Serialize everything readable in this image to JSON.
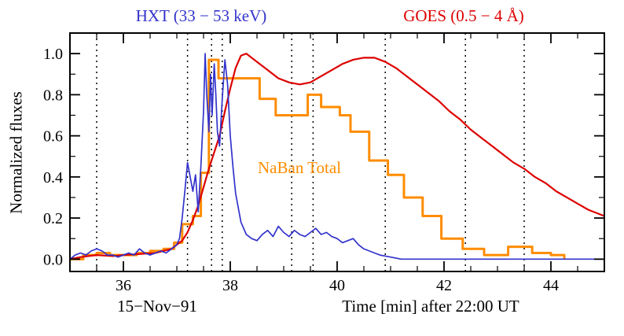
{
  "chart_data": {
    "type": "line",
    "title_left": "HXT (33 − 53 keV)",
    "title_right": "GOES (0.5 − 4 Å)",
    "inline_label": "NaBan Total",
    "xlabel": "Time [min] after 22:00 UT",
    "date_label": "15−Nov−91",
    "ylabel": "Normalized fluxes",
    "xlim": [
      35,
      45
    ],
    "ylim": [
      -0.06,
      1.1
    ],
    "xticks": [
      36,
      38,
      40,
      42,
      44
    ],
    "xtick_labels": [
      "36",
      "38",
      "40",
      "42",
      "44"
    ],
    "yticks": [
      0.0,
      0.2,
      0.4,
      0.6,
      0.8,
      1.0
    ],
    "ytick_labels": [
      "0.0",
      "0.2",
      "0.4",
      "0.6",
      "0.8",
      "1.0"
    ],
    "xminor": 0.5,
    "yminor": 0.1,
    "grid": false,
    "legend_position": "top-inline",
    "frame_color": "#000000",
    "background": "#ffffff",
    "vline_color": "#000000",
    "vlines": [
      35.5,
      37.2,
      37.65,
      37.85,
      39.15,
      39.55,
      40.9,
      42.4,
      43.5
    ],
    "series": [
      {
        "name": "NaBan",
        "color": "#ff8c00",
        "style": "step",
        "width": 3,
        "x": [
          35.0,
          35.25,
          35.5,
          35.75,
          36.0,
          36.25,
          36.5,
          36.75,
          36.95,
          37.1,
          37.3,
          37.45,
          37.6,
          37.78,
          38.55,
          38.85,
          39.45,
          39.7,
          40.05,
          40.25,
          40.6,
          40.95,
          41.25,
          41.6,
          41.95,
          42.35,
          42.75,
          43.2,
          43.65,
          44.0,
          44.25
        ],
        "y": [
          0.0,
          0.02,
          0.03,
          0.02,
          0.02,
          0.03,
          0.04,
          0.05,
          0.08,
          0.17,
          0.21,
          0.42,
          0.97,
          0.88,
          0.78,
          0.7,
          0.8,
          0.74,
          0.7,
          0.62,
          0.48,
          0.41,
          0.3,
          0.21,
          0.1,
          0.05,
          0.02,
          0.06,
          0.03,
          0.02,
          0.0
        ]
      },
      {
        "name": "GOES",
        "color": "#dd0000",
        "style": "line",
        "width": 2.2,
        "x": [
          35.0,
          35.2,
          35.5,
          35.8,
          36.0,
          36.3,
          36.6,
          36.9,
          37.0,
          37.1,
          37.2,
          37.3,
          37.4,
          37.5,
          37.6,
          37.7,
          37.8,
          37.9,
          38.0,
          38.1,
          38.2,
          38.3,
          38.4,
          38.5,
          38.7,
          38.9,
          39.1,
          39.3,
          39.5,
          39.7,
          39.9,
          40.1,
          40.3,
          40.5,
          40.7,
          40.9,
          41.1,
          41.3,
          41.5,
          41.7,
          41.9,
          42.1,
          42.3,
          42.5,
          42.7,
          42.9,
          43.1,
          43.3,
          43.5,
          43.7,
          43.9,
          44.1,
          44.3,
          44.5,
          44.7,
          44.9,
          45.0
        ],
        "y": [
          0.0,
          0.01,
          0.02,
          0.015,
          0.02,
          0.025,
          0.03,
          0.05,
          0.07,
          0.09,
          0.13,
          0.19,
          0.26,
          0.35,
          0.44,
          0.52,
          0.6,
          0.72,
          0.83,
          0.93,
          0.99,
          1.0,
          0.98,
          0.96,
          0.92,
          0.88,
          0.86,
          0.85,
          0.86,
          0.89,
          0.92,
          0.95,
          0.97,
          0.98,
          0.98,
          0.96,
          0.93,
          0.89,
          0.85,
          0.81,
          0.77,
          0.72,
          0.68,
          0.63,
          0.59,
          0.55,
          0.51,
          0.47,
          0.44,
          0.4,
          0.37,
          0.33,
          0.3,
          0.27,
          0.24,
          0.22,
          0.21
        ]
      },
      {
        "name": "HXT",
        "color": "#3333cc",
        "style": "line",
        "width": 1.7,
        "x": [
          35.0,
          35.1,
          35.2,
          35.3,
          35.4,
          35.5,
          35.6,
          35.7,
          35.8,
          35.9,
          36.0,
          36.1,
          36.2,
          36.3,
          36.4,
          36.5,
          36.6,
          36.7,
          36.8,
          36.9,
          37.0,
          37.05,
          37.1,
          37.15,
          37.2,
          37.25,
          37.3,
          37.35,
          37.4,
          37.45,
          37.5,
          37.53,
          37.56,
          37.6,
          37.63,
          37.66,
          37.7,
          37.73,
          37.76,
          37.8,
          37.85,
          37.9,
          37.95,
          38.0,
          38.05,
          38.1,
          38.2,
          38.3,
          38.4,
          38.5,
          38.6,
          38.7,
          38.8,
          38.9,
          39.0,
          39.1,
          39.2,
          39.3,
          39.4,
          39.5,
          39.6,
          39.7,
          39.8,
          39.9,
          40.0,
          40.1,
          40.2,
          40.3,
          40.4,
          40.5,
          40.6,
          40.7,
          40.8,
          41.0,
          41.2,
          41.5,
          42.0,
          43.0,
          44.0,
          45.0
        ],
        "y": [
          0.0,
          0.02,
          0.03,
          0.02,
          0.04,
          0.05,
          0.04,
          0.02,
          0.02,
          0.01,
          0.02,
          0.03,
          0.02,
          0.05,
          0.03,
          0.02,
          0.03,
          0.04,
          0.03,
          0.05,
          0.07,
          0.1,
          0.2,
          0.33,
          0.47,
          0.4,
          0.33,
          0.41,
          0.23,
          0.45,
          0.72,
          1.0,
          0.8,
          0.62,
          0.9,
          0.7,
          0.95,
          0.8,
          0.62,
          0.55,
          0.78,
          0.97,
          0.85,
          0.6,
          0.45,
          0.32,
          0.18,
          0.12,
          0.1,
          0.09,
          0.12,
          0.14,
          0.11,
          0.16,
          0.13,
          0.11,
          0.14,
          0.12,
          0.11,
          0.13,
          0.15,
          0.12,
          0.13,
          0.11,
          0.1,
          0.08,
          0.09,
          0.1,
          0.07,
          0.05,
          0.04,
          0.03,
          0.02,
          0.01,
          0.0,
          0.0,
          0.0,
          0.0,
          0.0,
          0.0
        ]
      }
    ]
  }
}
